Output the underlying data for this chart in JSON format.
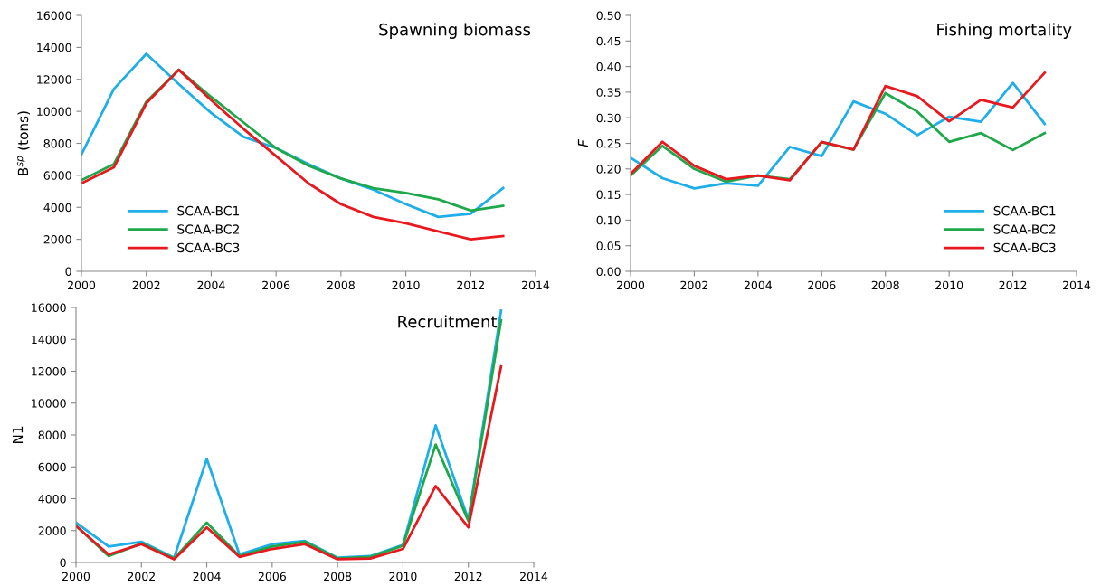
{
  "chart_data": [
    {
      "type": "line",
      "title": "Spawning biomass",
      "ylabel": "B$^{sp}$ (tons)",
      "x": [
        2000,
        2001,
        2002,
        2003,
        2004,
        2005,
        2006,
        2007,
        2008,
        2009,
        2010,
        2011,
        2012,
        2013
      ],
      "xlim": [
        2000,
        2014
      ],
      "xticks": [
        2000,
        2002,
        2004,
        2006,
        2008,
        2010,
        2012,
        2014
      ],
      "ylim": [
        0,
        16000
      ],
      "yticks": [
        0,
        2000,
        4000,
        6000,
        8000,
        10000,
        12000,
        14000,
        16000
      ],
      "grid": false,
      "legend": "bottom left",
      "marker": "none",
      "line_style": "solid",
      "series": [
        {
          "name": "SCAA-BC1",
          "color": "#1eaee8",
          "values": [
            7300,
            11400,
            13600,
            11700,
            9900,
            8400,
            7700,
            6700,
            5800,
            5100,
            4200,
            3400,
            3600,
            5200
          ]
        },
        {
          "name": "SCAA-BC2",
          "color": "#1ea84a",
          "values": [
            5700,
            6700,
            10600,
            12600,
            10900,
            9300,
            7700,
            6600,
            5800,
            5200,
            4900,
            4500,
            3800,
            4100
          ]
        },
        {
          "name": "SCAA-BC3",
          "color": "#e8191e",
          "values": [
            5500,
            6500,
            10500,
            12600,
            10700,
            8900,
            7200,
            5500,
            4200,
            3400,
            3000,
            2500,
            2000,
            2200
          ]
        }
      ]
    },
    {
      "type": "line",
      "title": "Fishing mortality",
      "ylabel": "F",
      "x": [
        2000,
        2001,
        2002,
        2003,
        2004,
        2005,
        2006,
        2007,
        2008,
        2009,
        2010,
        2011,
        2012,
        2013
      ],
      "xlim": [
        2000,
        2014
      ],
      "xticks": [
        2000,
        2002,
        2004,
        2006,
        2008,
        2010,
        2012,
        2014
      ],
      "ylim": [
        0,
        0.5
      ],
      "yticks": [
        {
          "value": 0,
          "label": "0.00"
        },
        {
          "value": 0.05,
          "label": "0.05"
        },
        {
          "value": 0.1,
          "label": "0.10"
        },
        {
          "value": 0.15,
          "label": "0.15"
        },
        {
          "value": 0.2,
          "label": "0.20"
        },
        {
          "value": 0.25,
          "label": "0.25"
        },
        {
          "value": 0.3,
          "label": "0.30"
        },
        {
          "value": 0.35,
          "label": "0.35"
        },
        {
          "value": 0.4,
          "label": "0.40"
        },
        {
          "value": 0.45,
          "label": "0.45"
        },
        {
          "value": 0.5,
          "label": "0.50"
        }
      ],
      "grid": false,
      "legend": "bottom right",
      "marker": "none",
      "line_style": "solid",
      "series": [
        {
          "name": "SCAA-BC1",
          "color": "#1eaee8",
          "values": [
            0.222,
            0.182,
            0.162,
            0.172,
            0.167,
            0.243,
            0.225,
            0.332,
            0.308,
            0.266,
            0.302,
            0.292,
            0.368,
            0.288
          ]
        },
        {
          "name": "SCAA-BC2",
          "color": "#1ea84a",
          "values": [
            0.187,
            0.245,
            0.2,
            0.175,
            0.187,
            0.18,
            0.252,
            0.238,
            0.348,
            0.312,
            0.253,
            0.27,
            0.237,
            0.27
          ]
        },
        {
          "name": "SCAA-BC3",
          "color": "#e8191e",
          "values": [
            0.19,
            0.253,
            0.206,
            0.18,
            0.187,
            0.178,
            0.253,
            0.238,
            0.362,
            0.342,
            0.293,
            0.335,
            0.32,
            0.388
          ]
        }
      ]
    },
    {
      "type": "line",
      "title": "Recruitment",
      "ylabel": "N1",
      "x": [
        2000,
        2001,
        2002,
        2003,
        2004,
        2005,
        2006,
        2007,
        2008,
        2009,
        2010,
        2011,
        2012,
        2013
      ],
      "xlim": [
        2000,
        2014
      ],
      "xticks": [
        2000,
        2002,
        2004,
        2006,
        2008,
        2010,
        2012,
        2014
      ],
      "ylim": [
        0,
        16000
      ],
      "yticks": [
        0,
        2000,
        4000,
        6000,
        8000,
        10000,
        12000,
        14000,
        16000
      ],
      "grid": false,
      "legend": false,
      "marker": "none",
      "line_style": "solid",
      "series": [
        {
          "color": "#1eaee8",
          "values": [
            2500,
            1000,
            1300,
            300,
            6500,
            500,
            1150,
            1350,
            300,
            400,
            1100,
            8600,
            2700,
            15800
          ]
        },
        {
          "color": "#1ea84a",
          "values": [
            2300,
            400,
            1200,
            250,
            2500,
            400,
            1000,
            1300,
            250,
            350,
            1050,
            7400,
            2600,
            15200
          ]
        },
        {
          "color": "#e8191e",
          "values": [
            2300,
            500,
            1150,
            200,
            2200,
            350,
            850,
            1150,
            200,
            250,
            850,
            4800,
            2200,
            12300
          ]
        }
      ]
    }
  ]
}
